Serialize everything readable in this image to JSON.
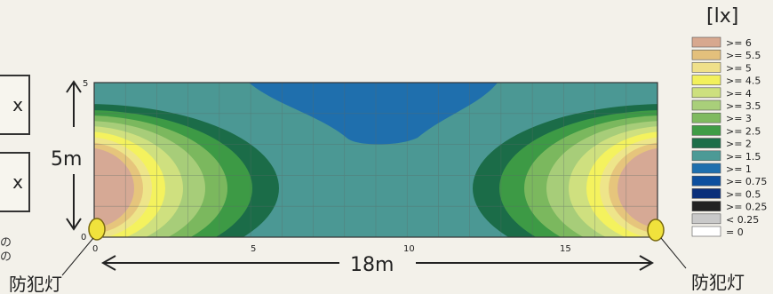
{
  "unit": "[lx]",
  "dims": {
    "height": "5m",
    "width": "18m"
  },
  "lamp_label_left": "防犯灯",
  "lamp_label_right": "防犯灯",
  "box_units": [
    "x",
    "x"
  ],
  "side_notes": [
    "の",
    "の"
  ],
  "axes": {
    "x_ticks": [
      "0",
      "5",
      "10",
      "15"
    ],
    "y_top_tick": "5",
    "y_origin_tick": "0"
  },
  "legend": [
    {
      "label": ">= 6",
      "color": "#d7a88f"
    },
    {
      "label": ">= 5.5",
      "color": "#e3c07c"
    },
    {
      "label": ">= 5",
      "color": "#efe08a"
    },
    {
      "label": ">= 4.5",
      "color": "#f2f05c"
    },
    {
      "label": ">= 4",
      "color": "#cde07e"
    },
    {
      "label": ">= 3.5",
      "color": "#a9cf7a"
    },
    {
      "label": ">= 3",
      "color": "#7fba60"
    },
    {
      "label": ">= 2.5",
      "color": "#3f9c46"
    },
    {
      "label": ">= 2",
      "color": "#1c6e48"
    },
    {
      "label": ">= 1.5",
      "color": "#4c9a96"
    },
    {
      "label": ">= 1",
      "color": "#1e6fae"
    },
    {
      "label": ">= 0.75",
      "color": "#0d4f9e"
    },
    {
      "label": ">= 0.5",
      "color": "#0a2f7a"
    },
    {
      "label": ">= 0.25",
      "color": "#222222"
    },
    {
      "label": "< 0.25",
      "color": "#c9c9c9"
    },
    {
      "label": "= 0",
      "color": "#ffffff"
    }
  ],
  "colors": {
    "zone6": "#d6a995",
    "zone55": "#e6c57c",
    "zone5": "#eee58a",
    "zone45": "#f4f25e",
    "zone4": "#cfe07f",
    "zone35": "#a7cd79",
    "zone3": "#7bb85e",
    "zone25": "#3d9a45",
    "zone2": "#1b6c48",
    "zone15": "#4b9894",
    "zone1": "#1f6fad",
    "lamp": "#f0e23c"
  }
}
